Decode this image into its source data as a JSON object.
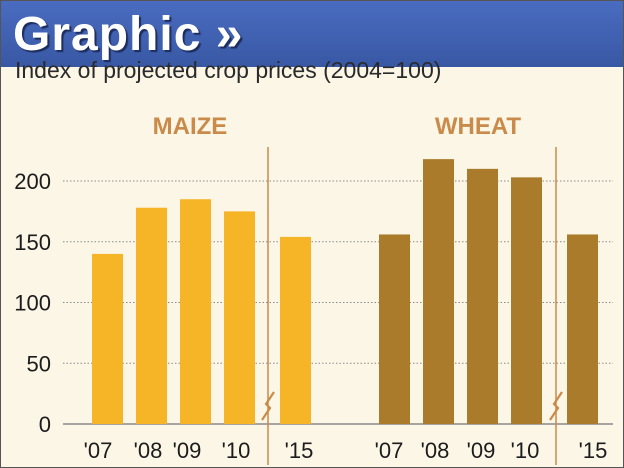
{
  "header": {
    "title": "Graphic »"
  },
  "subtitle": "Index of projected crop prices (2004=100)",
  "colors": {
    "maize": "#f6b527",
    "wheat": "#a97b2b",
    "divider": "#c98a4a",
    "background": "#fbf6e6",
    "header": "#3c5ca8",
    "grid": "#8a8a8a"
  },
  "chart_data": [
    {
      "type": "bar",
      "title": "MAIZE",
      "categories": [
        "'07",
        "'08",
        "'09",
        "'10",
        "'15"
      ],
      "values": [
        140,
        178,
        185,
        175,
        154
      ],
      "ylim": [
        0,
        210
      ],
      "yticks": [
        0,
        50,
        100,
        150,
        200
      ],
      "axis_break_after": "'10",
      "color": "#f6b527",
      "grid": true
    },
    {
      "type": "bar",
      "title": "WHEAT",
      "categories": [
        "'07",
        "'08",
        "'09",
        "'10",
        "'15"
      ],
      "values": [
        156,
        218,
        210,
        203,
        156
      ],
      "ylim": [
        0,
        210
      ],
      "yticks": [
        0,
        50,
        100,
        150,
        200
      ],
      "axis_break_after": "'10",
      "color": "#a97b2b",
      "grid": true
    }
  ]
}
